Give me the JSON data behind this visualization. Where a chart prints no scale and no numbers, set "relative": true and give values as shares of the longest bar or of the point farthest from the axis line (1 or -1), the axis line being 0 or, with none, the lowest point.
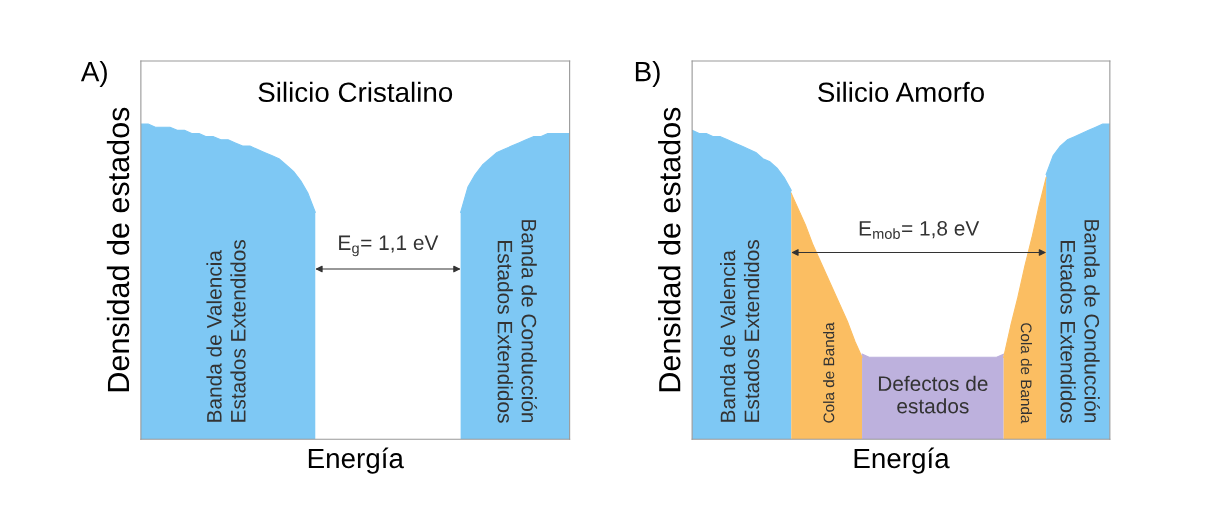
{
  "chart_data": [
    {
      "type": "area",
      "relative": true,
      "title": "Silicio Cristalino",
      "xlabel": "Energía",
      "ylabel": "Densidad de estados",
      "categories": [
        null,
        null,
        null,
        null,
        null,
        null,
        null,
        null,
        null,
        null,
        null,
        null,
        null,
        null,
        null,
        null,
        null,
        null,
        null,
        null,
        null,
        null,
        null,
        null,
        null,
        null,
        null,
        null,
        null,
        null,
        null,
        null,
        null,
        null,
        null,
        null,
        null,
        null,
        null,
        null,
        null,
        null,
        null,
        null,
        null,
        null,
        null,
        null,
        null,
        null,
        null,
        null,
        null,
        null,
        null,
        null,
        null,
        null,
        null,
        null
      ],
      "series": [
        {
          "name": "Banda de Valencia\nEstados Extendidos",
          "color": "#7ec8f4",
          "values": [
            1.0,
            1.0,
            0.99,
            0.99,
            0.99,
            0.98,
            0.98,
            0.97,
            0.97,
            0.96,
            0.96,
            0.95,
            0.95,
            0.94,
            0.93,
            0.93,
            0.92,
            0.91,
            0.9,
            0.89,
            0.87,
            0.85,
            0.82,
            0.78,
            0.72,
            null,
            null,
            null,
            null,
            null,
            null,
            null,
            null,
            null,
            null,
            null,
            null,
            null,
            null,
            null,
            null,
            null,
            null,
            null,
            null,
            null,
            null,
            null,
            null,
            null,
            null,
            null,
            null,
            null,
            null,
            null,
            null,
            null,
            null,
            null
          ]
        },
        {
          "name": "Banda de Conducción\nEstados Extendidos",
          "color": "#7ec8f4",
          "values": [
            null,
            null,
            null,
            null,
            null,
            null,
            null,
            null,
            null,
            null,
            null,
            null,
            null,
            null,
            null,
            null,
            null,
            null,
            null,
            null,
            null,
            null,
            null,
            null,
            null,
            null,
            null,
            null,
            null,
            null,
            null,
            null,
            null,
            null,
            null,
            null,
            null,
            null,
            null,
            null,
            null,
            null,
            null,
            null,
            0.72,
            0.8,
            0.84,
            0.87,
            0.89,
            0.91,
            0.92,
            0.93,
            0.94,
            0.95,
            0.96,
            0.96,
            0.97,
            0.97,
            0.97,
            0.97
          ]
        }
      ],
      "annotations": [
        "A)",
        "E$_{g}$= 1,1 eV"
      ]
    },
    {
      "type": "area",
      "relative": true,
      "title": "Silicio Amorfo",
      "xlabel": "Energía",
      "ylabel": "Densidad de estados",
      "categories": [
        null,
        null,
        null,
        null,
        null,
        null,
        null,
        null,
        null,
        null,
        null,
        null,
        null,
        null,
        null,
        null,
        null,
        null,
        null,
        null,
        null,
        null,
        null,
        null,
        null,
        null,
        null,
        null,
        null,
        null,
        null,
        null,
        null,
        null,
        null,
        null,
        null,
        null,
        null,
        null,
        null,
        null,
        null,
        null,
        null,
        null,
        null,
        null,
        null,
        null,
        null,
        null,
        null,
        null,
        null,
        null,
        null,
        null,
        null,
        null
      ],
      "series": [
        {
          "name": "Banda de Valencia\nEstados Extendidos",
          "color": "#7ec8f4",
          "values": [
            0.98,
            0.97,
            0.97,
            0.96,
            0.96,
            0.95,
            0.94,
            0.93,
            0.92,
            0.91,
            0.89,
            0.88,
            0.86,
            0.83,
            0.79,
            null,
            null,
            null,
            null,
            null,
            null,
            null,
            null,
            null,
            null,
            null,
            null,
            null,
            null,
            null,
            null,
            null,
            null,
            null,
            null,
            null,
            null,
            null,
            null,
            null,
            null,
            null,
            null,
            null,
            null,
            null,
            null,
            null,
            null,
            null,
            null,
            null,
            null,
            null,
            null,
            null,
            null,
            null,
            null,
            null
          ]
        },
        {
          "name": "Cola de Banda",
          "color": "#fbbe62",
          "values": [
            null,
            null,
            null,
            null,
            null,
            null,
            null,
            null,
            null,
            null,
            null,
            null,
            null,
            null,
            0.78,
            0.73,
            0.68,
            0.62,
            0.57,
            0.52,
            0.47,
            0.42,
            0.37,
            0.31,
            0.26,
            null,
            null,
            null,
            null,
            null,
            null,
            null,
            null,
            null,
            null,
            null,
            null,
            null,
            null,
            null,
            null,
            null,
            null,
            null,
            null,
            null,
            null,
            null,
            null,
            null,
            null,
            null,
            null,
            null,
            null,
            null,
            null,
            null,
            null,
            null
          ]
        },
        {
          "name": "Defectos de\nestados",
          "color": "#bdb1dd",
          "values": [
            null,
            null,
            null,
            null,
            null,
            null,
            null,
            null,
            null,
            null,
            null,
            null,
            null,
            null,
            null,
            null,
            null,
            null,
            null,
            null,
            null,
            null,
            null,
            null,
            0.27,
            0.26,
            0.26,
            0.26,
            0.26,
            0.26,
            0.26,
            0.26,
            0.26,
            0.26,
            0.26,
            0.26,
            0.26,
            0.26,
            0.26,
            0.26,
            0.26,
            0.26,
            0.26,
            0.26,
            0.27,
            null,
            null,
            null,
            null,
            null,
            null,
            null,
            null,
            null,
            null,
            null,
            null,
            null,
            null,
            null
          ]
        },
        {
          "name": "Cola de Banda",
          "color": "#fbbe62",
          "values": [
            null,
            null,
            null,
            null,
            null,
            null,
            null,
            null,
            null,
            null,
            null,
            null,
            null,
            null,
            null,
            null,
            null,
            null,
            null,
            null,
            null,
            null,
            null,
            null,
            null,
            null,
            null,
            null,
            null,
            null,
            null,
            null,
            null,
            null,
            null,
            null,
            null,
            null,
            null,
            null,
            null,
            null,
            null,
            null,
            0.26,
            0.36,
            0.45,
            0.55,
            0.64,
            0.74,
            0.83,
            null,
            null,
            null,
            null,
            null,
            null,
            null,
            null,
            null
          ]
        },
        {
          "name": "Banda de Conducción\nEstados Extendidos",
          "color": "#7ec8f4",
          "values": [
            null,
            null,
            null,
            null,
            null,
            null,
            null,
            null,
            null,
            null,
            null,
            null,
            null,
            null,
            null,
            null,
            null,
            null,
            null,
            null,
            null,
            null,
            null,
            null,
            null,
            null,
            null,
            null,
            null,
            null,
            null,
            null,
            null,
            null,
            null,
            null,
            null,
            null,
            null,
            null,
            null,
            null,
            null,
            null,
            null,
            null,
            null,
            null,
            null,
            null,
            0.84,
            0.9,
            0.93,
            0.95,
            0.96,
            0.97,
            0.98,
            0.99,
            1.0,
            1.0
          ]
        }
      ],
      "annotations": [
        "B)",
        "E$_{mob}$= 1,8 eV"
      ]
    }
  ]
}
